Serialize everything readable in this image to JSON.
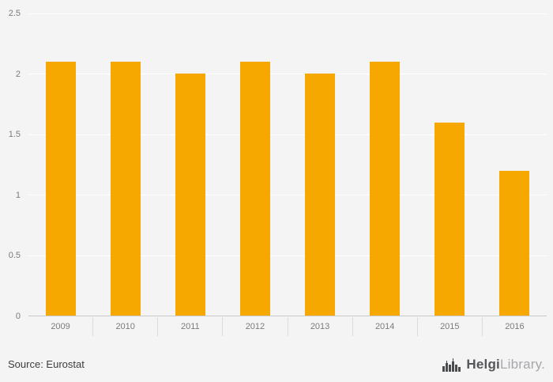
{
  "chart_data": {
    "type": "bar",
    "title": "",
    "xlabel": "",
    "ylabel": "",
    "categories": [
      "2009",
      "2010",
      "2011",
      "2012",
      "2013",
      "2014",
      "2015",
      "2016"
    ],
    "values": [
      2.1,
      2.1,
      2.0,
      2.1,
      2.0,
      2.1,
      1.6,
      1.2
    ],
    "ylim": [
      0,
      2.5
    ],
    "yticks": [
      0,
      0.5,
      1,
      1.5,
      2,
      2.5
    ],
    "ytick_labels": [
      "0",
      "0.5",
      "1",
      "1.5",
      "2",
      "2.5"
    ],
    "grid": true,
    "legend": "none",
    "bar_color": "#f6a800",
    "background": "#f4f4f4"
  },
  "footer": {
    "source": "Source: Eurostat",
    "logo": {
      "primary": "Helgi",
      "secondary": "Library.",
      "icon": "bar-chart-logo-icon"
    }
  },
  "colors": {
    "accent": "#f6a800",
    "axis_text": "#7b7b7b",
    "source_text": "#3d3d3d",
    "logo_dark": "#55575a",
    "logo_gray": "#a6a8ab"
  }
}
